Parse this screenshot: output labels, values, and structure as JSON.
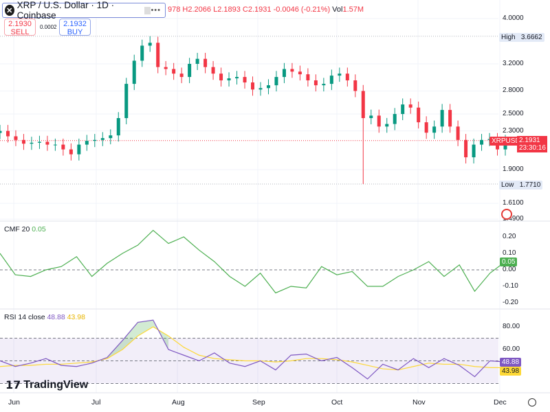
{
  "header": {
    "symbol_title": "XRP / U.S. Dollar · 1D · Coinbase",
    "logo_letter": "✕",
    "more": "•••",
    "ohlc_prefix": "978",
    "high": "H2.2066",
    "low": "L2.1893",
    "close": "C2.1931",
    "change": "-0.0046 (-0.21%)",
    "vol_label": "Vol",
    "vol": "1.57M"
  },
  "trade": {
    "sell_price": "2.1930",
    "sell_label": "SELL",
    "spread": "0.0002",
    "buy_price": "2.1932",
    "buy_label": "BUY"
  },
  "price_axis": {
    "ticks": [
      "4.0000",
      "3.2000",
      "2.8000",
      "2.5000",
      "2.3000",
      "1.9000",
      "1.6100",
      "1.4900"
    ],
    "high_label": "High",
    "high_value": "3.6662",
    "low_label": "Low",
    "low_value": "1.7710",
    "symbol_tag": "XRPUSD",
    "last_price": "2.1931",
    "countdown": "23:30:16"
  },
  "cmf": {
    "label": "CMF 20",
    "value": "0.05",
    "ticks": [
      "0.20",
      "0.10",
      "0.00",
      "-0.10",
      "-0.20"
    ]
  },
  "rsi": {
    "label": "RSI 14 close",
    "value": "48.88",
    "ma_value": "43.98",
    "ticks": [
      "80.00",
      "60.00"
    ]
  },
  "time_axis": [
    "Jun",
    "Jul",
    "Aug",
    "Sep",
    "Oct",
    "Nov",
    "Dec"
  ],
  "branding": "TradingView",
  "colors": {
    "up": "#089981",
    "down": "#f23645",
    "cmf": "#4caf50",
    "rsi": "#7e57c2",
    "rsi_ma": "#fdd835"
  },
  "chart_data": [
    {
      "type": "candlestick",
      "title": "XRP / U.S. Dollar · 1D · Coinbase",
      "scale": "log",
      "ylim": [
        1.45,
        4.2
      ],
      "interval_days": 3,
      "close": [
        2.3,
        2.24,
        2.2,
        2.16,
        2.17,
        2.18,
        2.15,
        2.15,
        2.1,
        2.05,
        2.15,
        2.19,
        2.2,
        2.22,
        2.25,
        2.45,
        2.9,
        3.25,
        3.5,
        3.55,
        3.15,
        3.12,
        3.05,
        3.0,
        3.2,
        3.28,
        3.15,
        3.05,
        2.95,
        2.98,
        3.0,
        2.92,
        2.82,
        2.84,
        2.88,
        3.0,
        3.12,
        3.08,
        3.04,
        2.95,
        2.88,
        2.9,
        3.02,
        3.05,
        2.95,
        2.8,
        2.45,
        2.48,
        2.35,
        2.38,
        2.5,
        2.62,
        2.58,
        2.4,
        2.28,
        2.35,
        2.55,
        2.35,
        2.2,
        2.02,
        2.15,
        2.2,
        2.21,
        2.1,
        2.19
      ],
      "high": 3.6662,
      "low": 1.771,
      "last": 2.1931
    },
    {
      "type": "line",
      "title": "CMF 20",
      "ylim": [
        -0.25,
        0.3
      ],
      "interval_days": 6,
      "values": [
        0.1,
        -0.03,
        -0.04,
        0.0,
        0.02,
        0.08,
        -0.04,
        0.04,
        0.1,
        0.15,
        0.24,
        0.16,
        0.2,
        0.12,
        0.05,
        -0.04,
        -0.1,
        -0.02,
        -0.14,
        -0.1,
        -0.11,
        0.02,
        -0.03,
        -0.01,
        -0.1,
        -0.1,
        -0.04,
        0.0,
        0.05,
        -0.04,
        0.03,
        -0.13,
        -0.02,
        0.05
      ]
    },
    {
      "type": "line",
      "title": "RSI 14 close",
      "ylim": [
        20,
        95
      ],
      "bands": [
        30,
        70
      ],
      "interval_days": 6,
      "values": [
        50,
        45,
        48,
        52,
        46,
        45,
        48,
        53,
        68,
        84,
        86,
        60,
        55,
        50,
        57,
        48,
        45,
        50,
        42,
        55,
        56,
        50,
        53,
        44,
        34,
        47,
        42,
        52,
        44,
        52,
        46,
        36,
        50,
        49
      ],
      "ma": [
        45,
        46,
        46,
        47,
        47,
        48,
        49,
        52,
        60,
        72,
        80,
        72,
        62,
        55,
        52,
        51,
        50,
        50,
        49,
        50,
        52,
        52,
        51,
        49,
        46,
        43,
        42,
        45,
        48,
        47,
        47,
        45,
        44,
        44
      ]
    }
  ]
}
